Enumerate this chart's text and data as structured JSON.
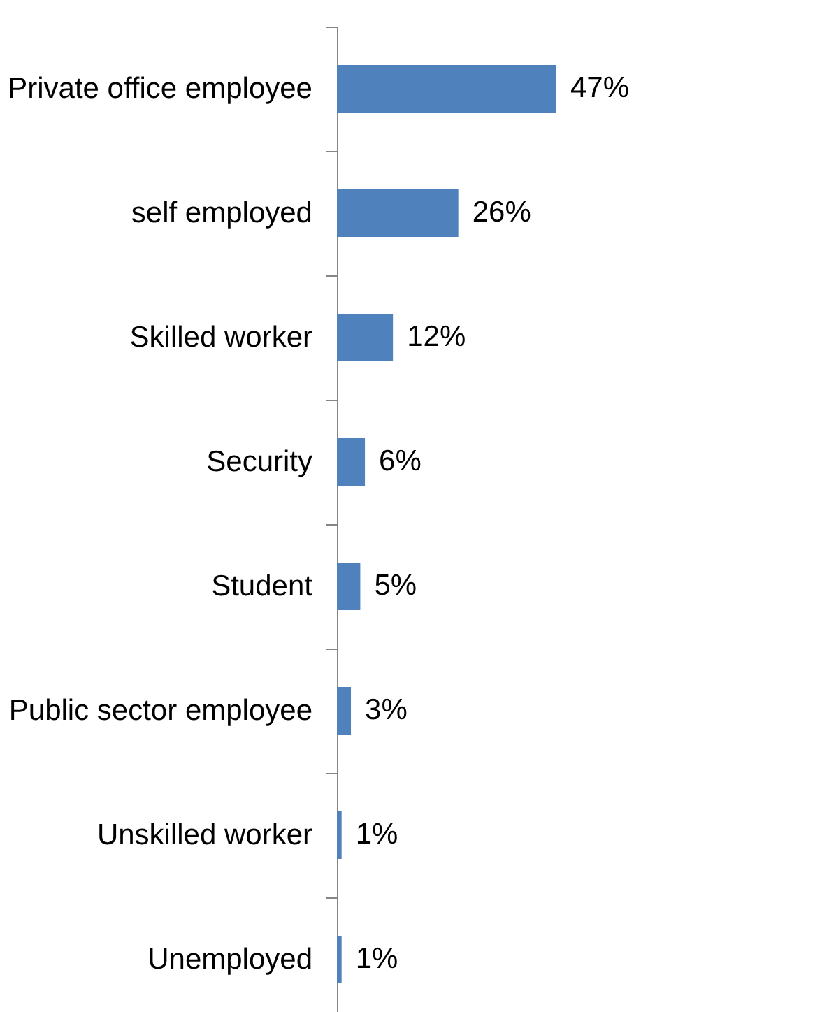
{
  "chart_data": {
    "type": "bar",
    "orientation": "horizontal",
    "categories": [
      "Private office employee",
      "self employed",
      "Skilled worker",
      "Security",
      "Student",
      "Public sector employee",
      "Unskilled worker",
      "Unemployed"
    ],
    "values": [
      47,
      26,
      12,
      6,
      5,
      3,
      1,
      1
    ],
    "value_labels": [
      "47%",
      "26%",
      "12%",
      "6%",
      "5%",
      "3%",
      "1%",
      "1%"
    ],
    "color": "#4f81bd"
  }
}
